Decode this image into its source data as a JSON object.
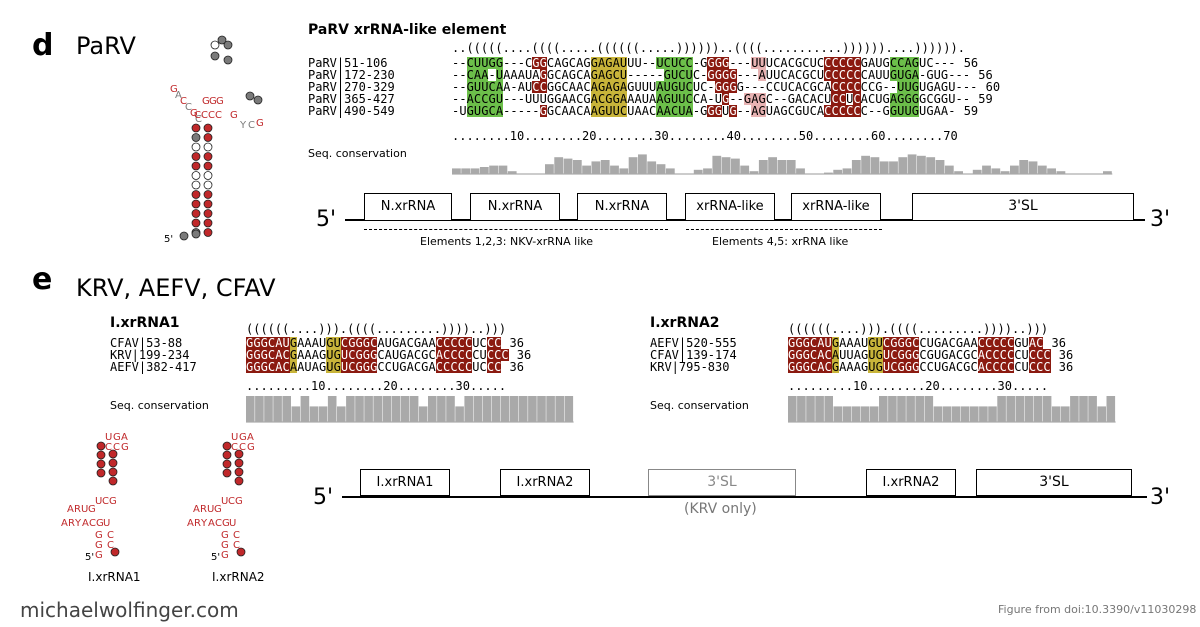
{
  "panel_d": {
    "letter": "d",
    "title": "PaRV",
    "alignment_title": "PaRV xrRNA-like element",
    "structure": "..(((((....((((.....((((((.....))))))..((((...........))))))....)))))).",
    "rows": [
      {
        "label": "PaRV|51-106",
        "seq": "--CUUGG---CGGCAGCAGGAGAUUU--UCUCC-GGGG---UUUCACGCUCCCCCCGAUGCCAGUC---",
        "len": "56"
      },
      {
        "label": "PaRV|172-230",
        "seq": "--CAA-UAAAUAGGCAGCAGAGCU-----GUCUC-GGGG---AUUCACGCUCCCCCCAUUGUGA-GUG---",
        "len": "56"
      },
      {
        "label": "PaRV|270-329",
        "seq": "--GUUCAA-AUCCGGCAACAGAGAGUUUAUGUCUC-GGGG---CCUCACGCACCCCCCG--UUGUGAGU---",
        "len": "60"
      },
      {
        "label": "PaRV|365-427",
        "seq": "--ACCGU---UUUGGAACGACGGAAAUAAGUUCCA-UG--GAGC--GACACUCCUCACUGAGGGGCGGU--",
        "len": "59"
      },
      {
        "label": "PaRV|490-549",
        "seq": "-UGUGCA-----GGCAACAAGUUCUAACAACUA-GGGUG--AGUAGCGUCACCCCCC--GGUUGUGAA-",
        "len": "59"
      }
    ],
    "ruler": "........10........20........30........40........50........60........70",
    "conservation_label": "Seq. conservation",
    "conservation": [
      0.2,
      0.2,
      0.2,
      0.25,
      0.3,
      0.3,
      0.1,
      0,
      0,
      0,
      0.35,
      0.6,
      0.55,
      0.5,
      0.3,
      0.45,
      0.5,
      0.3,
      0.2,
      0.6,
      0.7,
      0.45,
      0.35,
      0.2,
      0,
      0,
      0.15,
      0.2,
      0.65,
      0.6,
      0.55,
      0.3,
      0.1,
      0.5,
      0.6,
      0.5,
      0.5,
      0.2,
      0,
      0,
      0.05,
      0.15,
      0.2,
      0.5,
      0.65,
      0.6,
      0.45,
      0.45,
      0.6,
      0.7,
      0.65,
      0.6,
      0.5,
      0.3,
      0.1,
      0,
      0.15,
      0.3,
      0.2,
      0.1,
      0.3,
      0.5,
      0.45,
      0.3,
      0.2,
      0.1,
      0,
      0,
      0,
      0,
      0.1
    ],
    "genome": {
      "left": "5'",
      "right": "3'",
      "boxes": [
        "N.xrRNA",
        "N.xrRNA",
        "N.xrRNA",
        "xrRNA-like",
        "xrRNA-like",
        "3'SL"
      ],
      "bracket1": "Elements 1,2,3: NKV-xrRNA like",
      "bracket2": "Elements 4,5: xrRNA like"
    }
  },
  "panel_e": {
    "letter": "e",
    "title": "KRV, AEFV, CFAV",
    "aln1": {
      "title": "I.xrRNA1",
      "structure": "((((((....))).((((.........))))..)))",
      "rows": [
        {
          "label": "CFAV|53-88",
          "seq": "GGGCAUGAAAUGUCGGGCAUGACGAACCCCCUCCC",
          "len": "36"
        },
        {
          "label": "KRV|199-234",
          "seq": "GGGCACGAAAGUGUCGGGCAUGACGCACCCCCUCCC",
          "len": "36"
        },
        {
          "label": "AEFV|382-417",
          "seq": "GGGCACAAUAGUGUCGGGCCUGACGACCCCCUCCC",
          "len": "36"
        }
      ],
      "ruler": ".........10........20........30.....",
      "conservation_label": "Seq. conservation",
      "conservation": [
        1,
        1,
        1,
        1,
        1,
        0.6,
        1,
        0.6,
        0.6,
        1,
        0.6,
        1,
        1,
        1,
        1,
        1,
        1,
        1,
        1,
        0.6,
        1,
        1,
        1,
        0.6,
        1,
        1,
        1,
        1,
        1,
        1,
        1,
        1,
        1,
        1,
        1,
        1
      ]
    },
    "aln2": {
      "title": "I.xrRNA2",
      "structure": "((((((....))).((((.........))))..)))",
      "rows": [
        {
          "label": "AEFV|520-555",
          "seq": "GGGCAUGAAAUGUCGGGCCUGACGAACCCCCGUAC",
          "len": "36"
        },
        {
          "label": "CFAV|139-174",
          "seq": "GGGCACAUUAGUGUCGGGCGUGACGCACCCCCUCCC",
          "len": "36"
        },
        {
          "label": "KRV|795-830",
          "seq": "GGGCACGAAAGUGUCGGGCCUGACGCACCCCCUCCC",
          "len": "36"
        }
      ],
      "ruler": ".........10........20........30.....",
      "conservation_label": "Seq. conservation",
      "conservation": [
        1,
        1,
        1,
        1,
        1,
        0.6,
        0.6,
        0.6,
        0.6,
        0.6,
        1,
        1,
        1,
        1,
        1,
        1,
        0.6,
        0.6,
        0.6,
        0.6,
        0.6,
        0.6,
        0.6,
        1,
        1,
        1,
        1,
        1,
        1,
        0.6,
        0.6,
        1,
        1,
        1,
        0.6,
        1
      ]
    },
    "struct_labels": [
      "I.xrRNA1",
      "I.xrRNA2"
    ],
    "genome": {
      "left": "5'",
      "right": "3'",
      "boxes": [
        "I.xrRNA1",
        "I.xrRNA2",
        "3'SL",
        "I.xrRNA2",
        "3'SL"
      ],
      "note": "(KRV only)"
    }
  },
  "footer": {
    "site": "michaelwolfinger.com",
    "credit": "Figure from doi:10.3390/v11030298"
  },
  "colors": {
    "red": "#8b1a10",
    "green": "#6cbf4a",
    "yellow": "#c8b43a",
    "pink": "#e8b3b3",
    "bar": "#a9a9a9"
  }
}
